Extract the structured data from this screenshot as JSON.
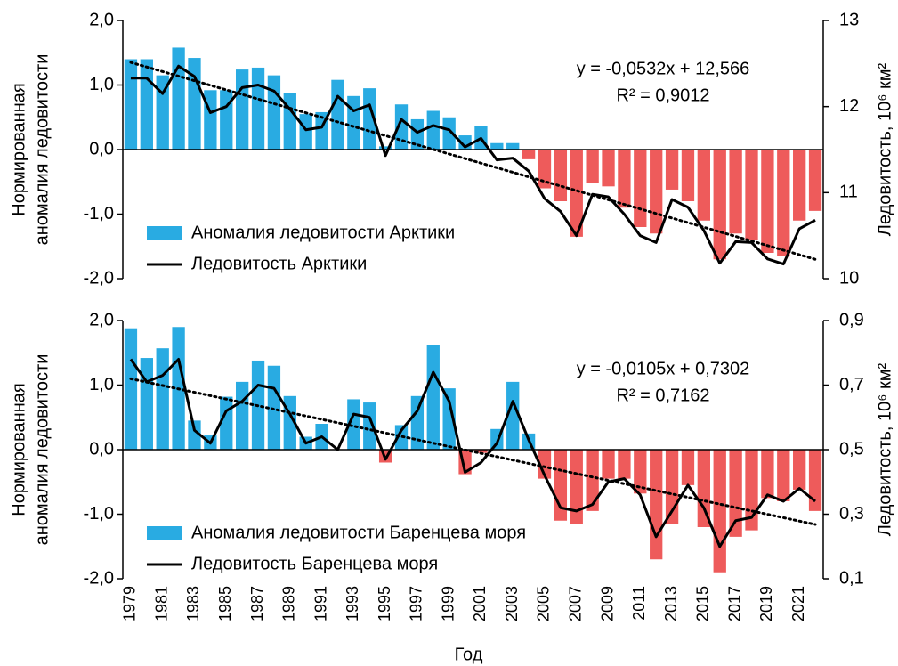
{
  "chart_data": [
    {
      "type": "combo",
      "ylabel": [
        "Нормированная",
        "аномалия ледовитости"
      ],
      "y2label": "Ледовитость, 10⁶ км²",
      "ylim": [
        -2,
        2
      ],
      "yticks": [
        {
          "value": 2,
          "label": "2,0"
        },
        {
          "value": 1,
          "label": "1,0"
        },
        {
          "value": 0,
          "label": "0,0"
        },
        {
          "value": -1,
          "label": "-1,0"
        },
        {
          "value": -2,
          "label": "-2,0"
        }
      ],
      "y2lim": [
        10,
        13
      ],
      "y2ticks": [
        13,
        12,
        11,
        10
      ],
      "legend": "lower left",
      "equation": "y = -0,0532x + 12,566",
      "r2": "R² = 0,9012",
      "trendline": {
        "slope": -0.0532,
        "intercept": 12.566,
        "axis": "y2",
        "color": "#000000"
      },
      "series": [
        {
          "name": "Аномалия ледовитости Арктики",
          "type": "bar",
          "color": "#29abe2",
          "negative_color": "#ee5b5b",
          "values": [
            1.4,
            1.4,
            1.15,
            1.58,
            1.42,
            0.92,
            0.92,
            1.24,
            1.27,
            1.15,
            0.88,
            0.55,
            0.58,
            1.08,
            0.83,
            0.95,
            0.05,
            0.7,
            0.47,
            0.6,
            0.5,
            0.22,
            0.37,
            0.1,
            0.1,
            -0.15,
            -0.6,
            -0.8,
            -1.35,
            -0.52,
            -0.57,
            -0.9,
            -1.2,
            -1.3,
            -0.62,
            -0.8,
            -1.1,
            -1.7,
            -1.3,
            -1.4,
            -1.6,
            -1.65,
            -1.1,
            -0.95
          ]
        },
        {
          "name": "Ледовитость Арктики",
          "type": "line",
          "axis": "y2",
          "color": "#000000",
          "values": [
            12.33,
            12.33,
            12.15,
            12.47,
            12.35,
            11.93,
            12.0,
            12.22,
            12.25,
            12.18,
            11.97,
            11.73,
            11.76,
            12.12,
            11.95,
            12.02,
            11.43,
            11.85,
            11.7,
            11.78,
            11.73,
            11.53,
            11.63,
            11.38,
            11.4,
            11.25,
            10.93,
            10.78,
            10.5,
            10.98,
            10.95,
            10.75,
            10.5,
            10.42,
            10.92,
            10.83,
            10.56,
            10.18,
            10.43,
            10.42,
            10.23,
            10.17,
            10.58,
            10.68
          ]
        }
      ]
    },
    {
      "type": "combo",
      "xlabel": "Год",
      "categories": [
        "1979",
        null,
        "1981",
        null,
        "1983",
        null,
        "1985",
        null,
        "1987",
        null,
        "1989",
        null,
        "1991",
        null,
        "1993",
        null,
        "1995",
        null,
        "1997",
        null,
        "1999",
        null,
        "2001",
        null,
        "2003",
        null,
        "2005",
        null,
        "2007",
        null,
        "2009",
        null,
        "2011",
        null,
        "2013",
        null,
        "2015",
        null,
        "2017",
        null,
        "2019",
        null,
        "2021",
        null
      ],
      "ylabel": [
        "Нормированная",
        "аномалия ледовитости"
      ],
      "y2label": "Ледовитость, 10⁶ км²",
      "ylim": [
        -2,
        2
      ],
      "yticks": [
        {
          "value": 2,
          "label": "2,0"
        },
        {
          "value": 1,
          "label": "1,0"
        },
        {
          "value": 0,
          "label": "0,0"
        },
        {
          "value": -1,
          "label": "-1,0"
        },
        {
          "value": -2,
          "label": "-2,0"
        }
      ],
      "y2lim": [
        0.1,
        0.9
      ],
      "y2ticks": [
        {
          "value": 0.9,
          "label": "0,9"
        },
        {
          "value": 0.7,
          "label": "0,7"
        },
        {
          "value": 0.5,
          "label": "0,5"
        },
        {
          "value": 0.3,
          "label": "0,3"
        },
        {
          "value": 0.1,
          "label": "0,1"
        }
      ],
      "legend": "lower left",
      "equation": "y = -0,0105x + 0,7302",
      "r2": "R² = 0,7162",
      "trendline": {
        "slope": -0.0105,
        "intercept": 0.7302,
        "axis": "y2",
        "color": "#000000"
      },
      "series": [
        {
          "name": "Аномалия ледовитости Баренцева моря",
          "type": "bar",
          "color": "#29abe2",
          "negative_color": "#ee5b5b",
          "values": [
            1.88,
            1.42,
            1.57,
            1.9,
            0.45,
            0.22,
            0.82,
            1.05,
            1.38,
            1.3,
            0.83,
            0.2,
            0.4,
            0.0,
            0.78,
            0.73,
            -0.2,
            0.38,
            0.83,
            1.62,
            0.95,
            -0.38,
            -0.05,
            0.32,
            1.05,
            0.25,
            -0.45,
            -1.1,
            -1.15,
            -0.95,
            -0.45,
            -0.45,
            -0.68,
            -1.7,
            -1.15,
            -0.55,
            -1.2,
            -1.9,
            -1.35,
            -1.25,
            -0.75,
            -0.8,
            -0.62,
            -0.95
          ]
        },
        {
          "name": "Ледовитость Баренцева моря",
          "type": "line",
          "axis": "y2",
          "color": "#000000",
          "values": [
            0.78,
            0.71,
            0.73,
            0.78,
            0.56,
            0.52,
            0.62,
            0.65,
            0.7,
            0.69,
            0.61,
            0.52,
            0.54,
            0.5,
            0.61,
            0.6,
            0.47,
            0.56,
            0.62,
            0.74,
            0.65,
            0.43,
            0.46,
            0.52,
            0.65,
            0.53,
            0.42,
            0.32,
            0.31,
            0.33,
            0.4,
            0.41,
            0.36,
            0.23,
            0.31,
            0.39,
            0.32,
            0.2,
            0.28,
            0.29,
            0.36,
            0.34,
            0.38,
            0.34
          ]
        }
      ]
    }
  ]
}
